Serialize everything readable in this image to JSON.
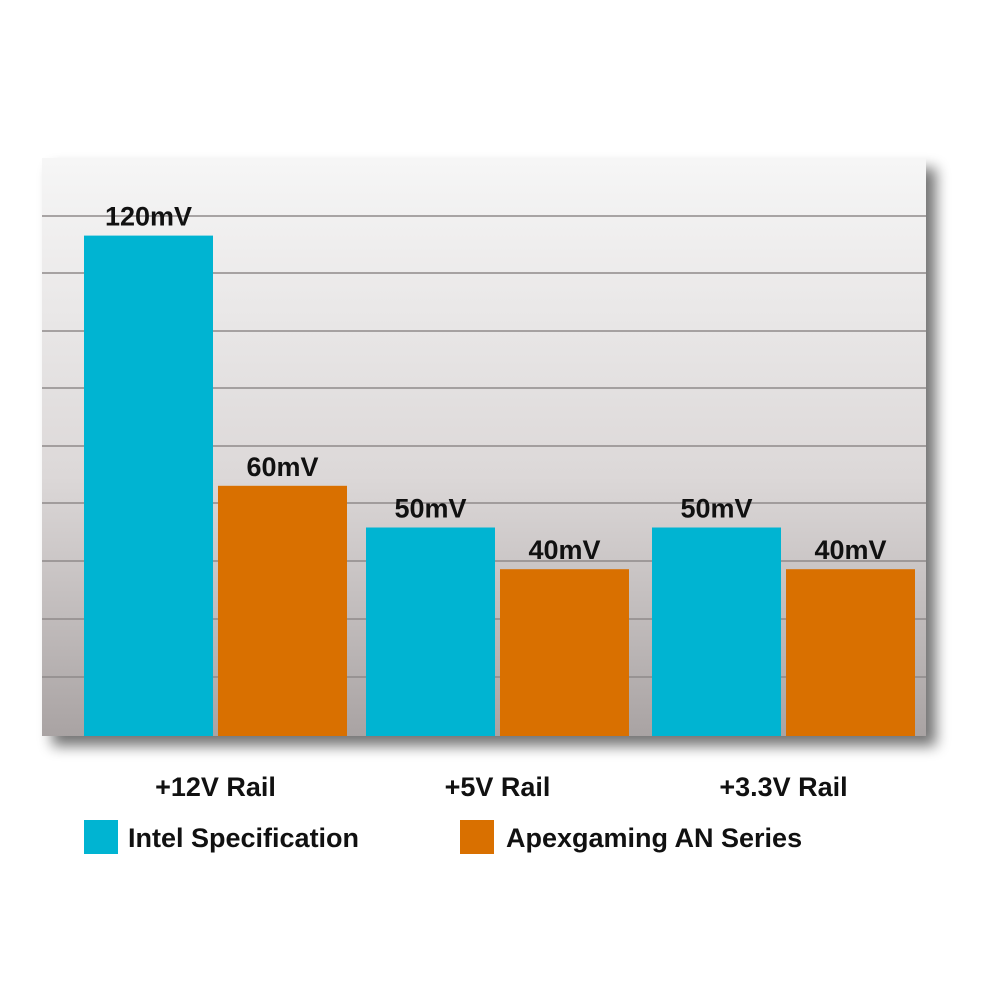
{
  "colors": {
    "intel": "#00b4d2",
    "apexgaming": "#d97000",
    "grid": "#8f8a8a",
    "panel_top": "#f6f6f6",
    "panel_bottom": "#a9a3a3"
  },
  "chart_data": {
    "type": "bar",
    "categories": [
      "+12V Rail",
      "+5V Rail",
      "+3.3V Rail"
    ],
    "series": [
      {
        "name": "Intel Specification",
        "values": [
          120,
          50,
          50
        ],
        "labels": [
          "120mV",
          "50mV",
          "50mV"
        ],
        "color": "#00b4d2"
      },
      {
        "name": "Apexgaming AN Series",
        "values": [
          60,
          40,
          40
        ],
        "labels": [
          "60mV",
          "40mV",
          "40mV"
        ],
        "color": "#d97000"
      }
    ],
    "ylim": [
      0,
      140
    ],
    "grid": true,
    "legend": "bottom"
  }
}
